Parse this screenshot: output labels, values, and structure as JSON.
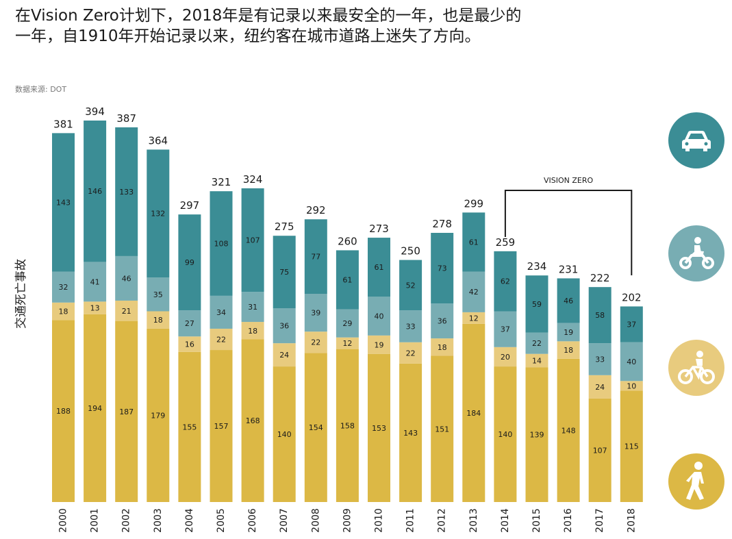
{
  "header": {
    "title": "在Vision Zero计划下，2018年是有记录以来最安全的一年，也是最少的一年，自1910年开始记录以来，纽约客在城市道路上迷失了方向。",
    "source": "数据来源: DOT"
  },
  "colors": {
    "motorist": "#3b8d95",
    "motorcyclist": "#78adb3",
    "cyclist": "#e8cb7e",
    "pedestrian": "#dcb845",
    "bracket": "#1a1a1a"
  },
  "icons": [
    {
      "name": "car-icon",
      "color": "#3b8d95"
    },
    {
      "name": "motorcycle-icon",
      "color": "#78adb3"
    },
    {
      "name": "bicycle-icon",
      "color": "#e8cb7e"
    },
    {
      "name": "pedestrian-icon",
      "color": "#dcb845"
    }
  ],
  "chart_data": {
    "type": "bar",
    "stacked": true,
    "title": "在Vision Zero计划下，2018年是有记录以来最安全的一年，也是最少的一年，自1910年开始记录以来，纽约客在城市道路上迷失了方向。",
    "xlabel": "",
    "ylabel": "交通死亡事故",
    "ylim": [
      0,
      394
    ],
    "categories": [
      "2000",
      "2001",
      "2002",
      "2003",
      "2004",
      "2005",
      "2006",
      "2007",
      "2008",
      "2009",
      "2010",
      "2011",
      "2012",
      "2013",
      "2014",
      "2015",
      "2016",
      "2017",
      "2018"
    ],
    "totals": [
      381,
      394,
      387,
      364,
      297,
      321,
      324,
      275,
      292,
      260,
      273,
      250,
      278,
      299,
      259,
      234,
      231,
      222,
      202
    ],
    "series": [
      {
        "name": "pedestrian",
        "values": [
          188,
          194,
          187,
          179,
          155,
          157,
          168,
          140,
          154,
          158,
          153,
          143,
          151,
          184,
          140,
          139,
          148,
          107,
          115
        ]
      },
      {
        "name": "cyclist",
        "values": [
          18,
          13,
          21,
          18,
          16,
          22,
          18,
          24,
          22,
          12,
          19,
          22,
          18,
          12,
          20,
          14,
          18,
          24,
          10
        ]
      },
      {
        "name": "motorcyclist",
        "values": [
          32,
          41,
          46,
          35,
          27,
          34,
          31,
          36,
          39,
          29,
          40,
          33,
          36,
          42,
          37,
          22,
          19,
          33,
          40
        ]
      },
      {
        "name": "motorist",
        "values": [
          143,
          146,
          133,
          132,
          99,
          108,
          107,
          75,
          77,
          61,
          61,
          52,
          73,
          61,
          62,
          59,
          46,
          58,
          37
        ]
      }
    ],
    "annotations": [
      {
        "text": "VISION ZERO",
        "from": "2014",
        "to": "2018"
      }
    ],
    "grid": false,
    "legend": "right (icons)"
  }
}
